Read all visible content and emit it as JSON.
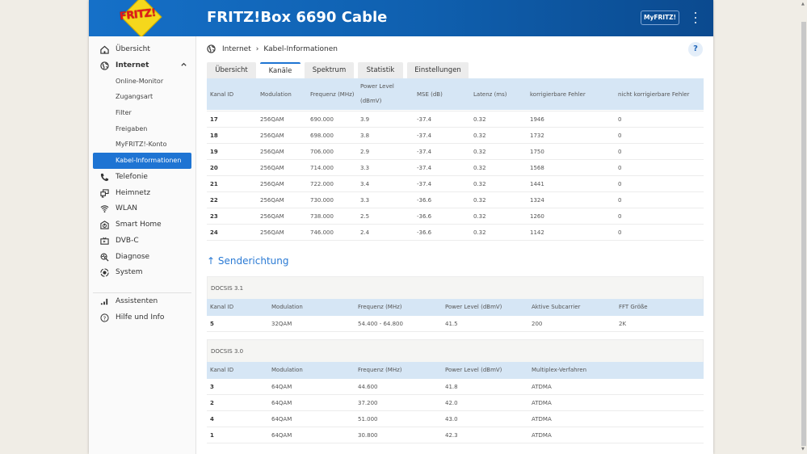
{
  "header": {
    "logo_text": "FRITZ!",
    "title": "FRITZ!Box 6690 Cable",
    "myfritz_label": "MyFRITZ!"
  },
  "sidebar": {
    "items": [
      {
        "label": "Übersicht",
        "icon": "home-icon"
      },
      {
        "label": "Internet",
        "icon": "globe-icon",
        "expanded": true
      },
      {
        "label": "Online-Monitor",
        "sub": true
      },
      {
        "label": "Zugangsart",
        "sub": true
      },
      {
        "label": "Filter",
        "sub": true
      },
      {
        "label": "Freigaben",
        "sub": true
      },
      {
        "label": "MyFRITZ!-Konto",
        "sub": true
      },
      {
        "label": "Kabel-Informationen",
        "sub": true,
        "active": true
      },
      {
        "label": "Telefonie",
        "icon": "phone-icon"
      },
      {
        "label": "Heimnetz",
        "icon": "network-icon"
      },
      {
        "label": "WLAN",
        "icon": "wifi-icon"
      },
      {
        "label": "Smart Home",
        "icon": "smart-home-icon"
      },
      {
        "label": "DVB-C",
        "icon": "tv-icon"
      },
      {
        "label": "Diagnose",
        "icon": "diagnose-icon"
      },
      {
        "label": "System",
        "icon": "system-icon"
      },
      {
        "label": "Assistenten",
        "icon": "assistant-icon"
      },
      {
        "label": "Hilfe und Info",
        "icon": "help-circle-icon"
      }
    ]
  },
  "breadcrumb": {
    "root": "Internet",
    "current": "Kabel-Informationen"
  },
  "help_label": "?",
  "tabs": [
    {
      "label": "Übersicht"
    },
    {
      "label": "Kanäle",
      "active": true
    },
    {
      "label": "Spektrum"
    },
    {
      "label": "Statistik"
    },
    {
      "label": "Einstellungen"
    }
  ],
  "downstream": {
    "headers": [
      "Kanal ID",
      "Modulation",
      "Frequenz (MHz)",
      "Power Level",
      "(dBmV)",
      "MSE (dB)",
      "Latenz (ms)",
      "korrigierbare Fehler",
      "nicht korrigierbare Fehler"
    ],
    "rows": [
      [
        "17",
        "256QAM",
        "690.000",
        "3.9",
        "-37.4",
        "0.32",
        "1946",
        "0"
      ],
      [
        "18",
        "256QAM",
        "698.000",
        "3.8",
        "-37.4",
        "0.32",
        "1732",
        "0"
      ],
      [
        "19",
        "256QAM",
        "706.000",
        "2.9",
        "-37.4",
        "0.32",
        "1750",
        "0"
      ],
      [
        "20",
        "256QAM",
        "714.000",
        "3.3",
        "-37.4",
        "0.32",
        "1568",
        "0"
      ],
      [
        "21",
        "256QAM",
        "722.000",
        "3.4",
        "-37.4",
        "0.32",
        "1441",
        "0"
      ],
      [
        "22",
        "256QAM",
        "730.000",
        "3.3",
        "-36.6",
        "0.32",
        "1324",
        "0"
      ],
      [
        "23",
        "256QAM",
        "738.000",
        "2.5",
        "-36.6",
        "0.32",
        "1260",
        "0"
      ],
      [
        "24",
        "256QAM",
        "746.000",
        "2.4",
        "-36.6",
        "0.32",
        "1142",
        "0"
      ]
    ]
  },
  "upstream": {
    "title": "↑ Senderichtung",
    "docsis31": {
      "label": "DOCSIS 3.1",
      "headers": [
        "Kanal ID",
        "Modulation",
        "Frequenz (MHz)",
        "Power Level (dBmV)",
        "Aktive Subcarrier",
        "FFT Größe"
      ],
      "rows": [
        [
          "5",
          "32QAM",
          "54.400 - 64.800",
          "41.5",
          "200",
          "2K"
        ]
      ]
    },
    "docsis30": {
      "label": "DOCSIS 3.0",
      "headers": [
        "Kanal ID",
        "Modulation",
        "Frequenz (MHz)",
        "Power Level (dBmV)",
        "Multiplex-Verfahren"
      ],
      "rows": [
        [
          "3",
          "64QAM",
          "44.600",
          "41.8",
          "ATDMA"
        ],
        [
          "2",
          "64QAM",
          "37.200",
          "42.0",
          "ATDMA"
        ],
        [
          "4",
          "64QAM",
          "51.000",
          "43.0",
          "ATDMA"
        ],
        [
          "1",
          "64QAM",
          "30.800",
          "42.3",
          "ATDMA"
        ]
      ]
    }
  },
  "colors": {
    "header_blue": "#1570c8",
    "accent": "#1e74d3",
    "table_header": "#d6e6f5",
    "page_bg": "#f0ede6"
  }
}
